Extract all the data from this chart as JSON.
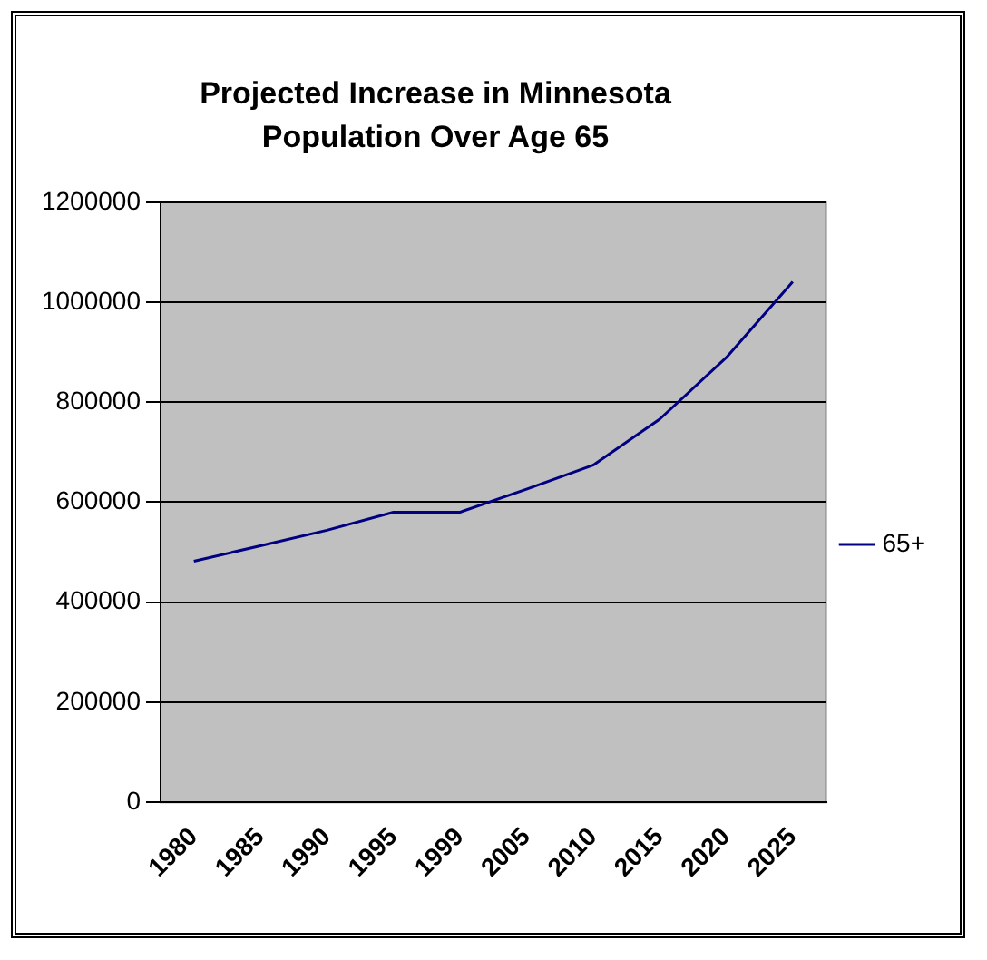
{
  "chart_data": {
    "type": "line",
    "title": "Projected Increase in Minnesota Population Over Age 65",
    "categories": [
      "1980",
      "1985",
      "1990",
      "1995",
      "1999",
      "2005",
      "2010",
      "2015",
      "2020",
      "2025"
    ],
    "series": [
      {
        "name": "65+",
        "color": "#000080",
        "values": [
          482000,
          513000,
          544000,
          580000,
          580000,
          626000,
          674000,
          766000,
          889000,
          1041000
        ]
      }
    ],
    "ylim": [
      0,
      1200000
    ],
    "yticks": [
      0,
      200000,
      400000,
      600000,
      800000,
      1000000,
      1200000
    ],
    "grid": "y",
    "legend": "right",
    "marker": "none",
    "line_style": "solid"
  }
}
